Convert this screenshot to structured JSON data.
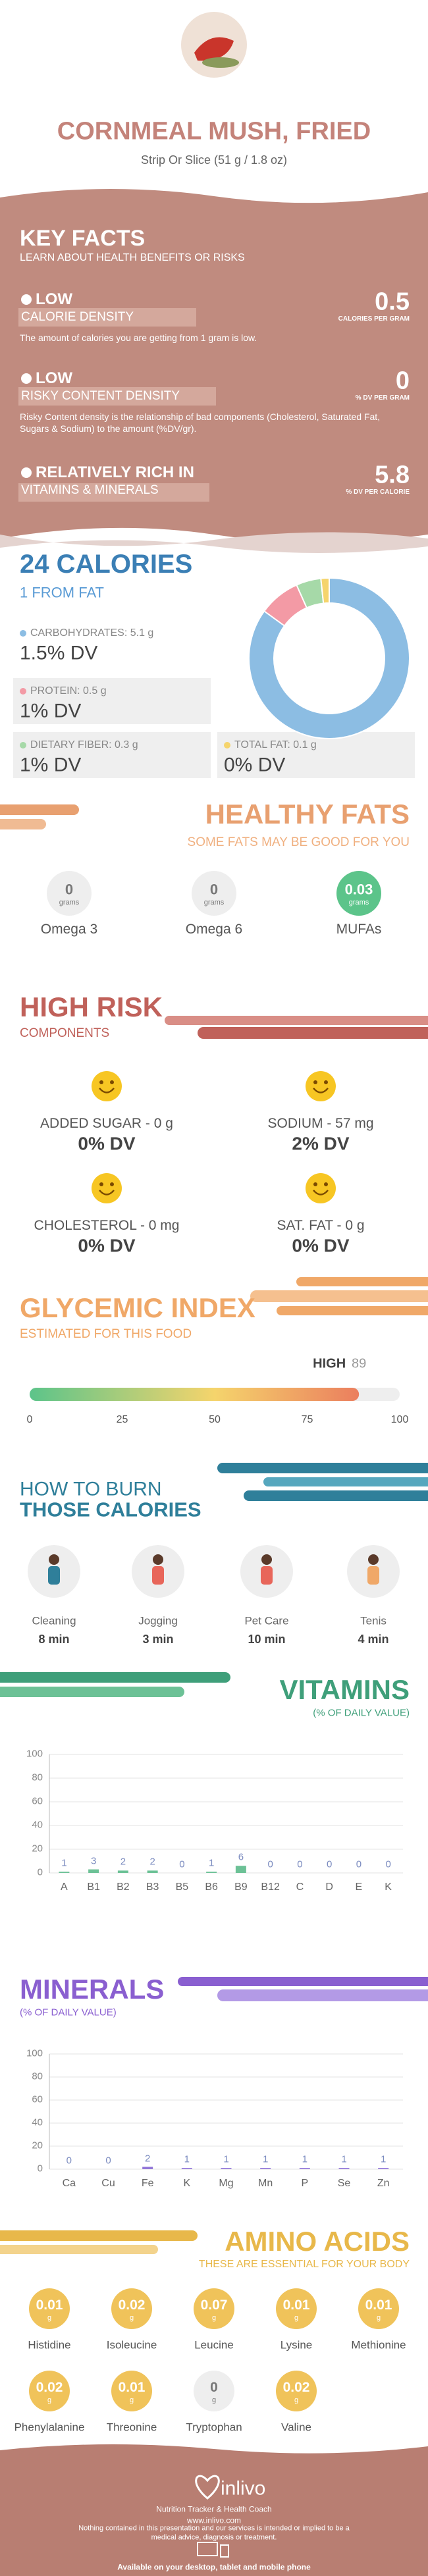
{
  "header": {
    "title": "CORNMEAL MUSH, FRIED",
    "subtitle": "Strip Or Slice (51 g / 1.8 oz)"
  },
  "key_facts": {
    "title": "KEY FACTS",
    "subtitle": "LEARN ABOUT HEALTH BENEFITS OR RISKS",
    "items": [
      {
        "level": "LOW",
        "name": "CALORIE DENSITY",
        "value": 0.5,
        "unit": "CALORIES PER GRAM",
        "description": "The amount of calories you are getting from 1 gram is low."
      },
      {
        "level": "LOW",
        "name": "RISKY CONTENT DENSITY",
        "value": 0,
        "unit": "% DV PER GRAM",
        "description": "Risky Content density is the relationship of bad components (Cholesterol, Saturated Fat, Sugars & Sodium) to the amount (%DV/gr)."
      },
      {
        "level": "RELATIVELY RICH IN",
        "name": "VITAMINS & MINERALS",
        "value": 5.8,
        "unit": "% DV PER CALORIE"
      }
    ]
  },
  "calories": {
    "type": "donut",
    "title": "24 CALORIES",
    "subtitle": "1 FROM FAT",
    "nutrients": [
      {
        "label": "CARBOHYDRATES: 5.1 g",
        "value": 5.1,
        "dv": "1.5% DV",
        "color": "#8cbde3"
      },
      {
        "label": "PROTEIN: 0.5 g",
        "value": 0.5,
        "dv": "1% DV",
        "color": "#f39aa5"
      },
      {
        "label": "DIETARY FIBER: 0.3 g",
        "value": 0.3,
        "dv": "1% DV",
        "color": "#a6d9a8"
      },
      {
        "label": "TOTAL FAT: 0.1 g",
        "value": 0.1,
        "dv": "0% DV",
        "color": "#f5d46c"
      }
    ]
  },
  "healthy_fats": {
    "title": "HEALTHY FATS",
    "subtitle": "SOME FATS MAY BE GOOD FOR YOU",
    "color": "#5cc48a",
    "items": [
      {
        "name": "Omega 3",
        "value": 0,
        "unit": "grams"
      },
      {
        "name": "Omega 6",
        "value": 0,
        "unit": "grams"
      },
      {
        "name": "MUFAs",
        "value": 0.03,
        "unit": "grams"
      }
    ]
  },
  "high_risk": {
    "title": "HIGH RISK",
    "subtitle": "COMPONENTS",
    "items": [
      {
        "label": "ADDED SUGAR - 0 g",
        "dv": "0% DV"
      },
      {
        "label": "SODIUM - 57 mg",
        "dv": "2% DV"
      },
      {
        "label": "CHOLESTEROL - 0 mg",
        "dv": "0% DV"
      },
      {
        "label": "SAT. FAT - 0 g",
        "dv": "0% DV"
      }
    ]
  },
  "glycemic": {
    "title": "GLYCEMIC INDEX",
    "subtitle": "ESTIMATED FOR THIS FOOD",
    "level": "HIGH",
    "value": 89,
    "xlim": [
      0,
      100
    ],
    "xticks": [
      0,
      25,
      50,
      75,
      100
    ]
  },
  "burn": {
    "title_line1": "HOW TO BURN",
    "title_line2": "THOSE CALORIES",
    "items": [
      {
        "activity": "Cleaning",
        "time": "8 min"
      },
      {
        "activity": "Jogging",
        "time": "3 min"
      },
      {
        "activity": "Pet Care",
        "time": "10 min"
      },
      {
        "activity": "Tenis",
        "time": "4 min"
      }
    ]
  },
  "vitamins": {
    "type": "bar",
    "title": "VITAMINS",
    "subtitle": "(% OF DAILY VALUE)",
    "categories": [
      "A",
      "B1",
      "B2",
      "B3",
      "B5",
      "B6",
      "B9",
      "B12",
      "C",
      "D",
      "E",
      "K"
    ],
    "values": [
      1,
      3,
      2,
      2,
      0,
      1,
      6,
      0,
      0,
      0,
      0,
      0
    ],
    "ylim": [
      0,
      100
    ],
    "yticks": [
      0,
      20,
      40,
      60,
      80,
      100
    ],
    "color": "#6cc196"
  },
  "minerals": {
    "type": "bar",
    "title": "MINERALS",
    "subtitle": "(% OF DAILY VALUE)",
    "categories": [
      "Ca",
      "Cu",
      "Fe",
      "K",
      "Mg",
      "Mn",
      "P",
      "Se",
      "Zn"
    ],
    "values": [
      0,
      0,
      2,
      1,
      1,
      1,
      1,
      1,
      1
    ],
    "ylim": [
      0,
      100
    ],
    "yticks": [
      0,
      20,
      40,
      60,
      80,
      100
    ],
    "color": "#9277d8"
  },
  "amino_acids": {
    "title": "AMINO ACIDS",
    "subtitle": "THESE ARE ESSENTIAL FOR YOUR BODY",
    "color": "#f0c35a",
    "items": [
      {
        "name": "Histidine",
        "value": 0.01,
        "unit": "g"
      },
      {
        "name": "Isoleucine",
        "value": 0.02,
        "unit": "g"
      },
      {
        "name": "Leucine",
        "value": 0.07,
        "unit": "g"
      },
      {
        "name": "Lysine",
        "value": 0.01,
        "unit": "g"
      },
      {
        "name": "Methionine",
        "value": 0.01,
        "unit": "g"
      },
      {
        "name": "Phenylalanine",
        "value": 0.02,
        "unit": "g"
      },
      {
        "name": "Threonine",
        "value": 0.01,
        "unit": "g"
      },
      {
        "name": "Tryptophan",
        "value": 0,
        "unit": "g"
      },
      {
        "name": "Valine",
        "value": 0.02,
        "unit": "g"
      }
    ]
  },
  "footer": {
    "brand": "inlivo",
    "tagline": "Nutrition Tracker & Health Coach",
    "url": "www.inlivo.com",
    "disclaimer": "Nothing contained in this presentation and our services is intended or implied to be a medical advice, diagnosis or treatment.",
    "availability": "Available on your desktop, tablet and mobile phone"
  }
}
